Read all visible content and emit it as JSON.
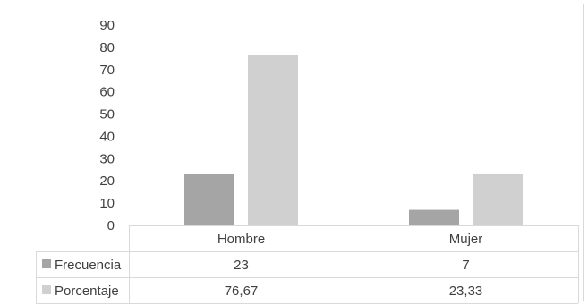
{
  "chart_data": {
    "type": "bar",
    "title": "",
    "xlabel": "",
    "ylabel": "",
    "categories": [
      "Hombre",
      "Mujer"
    ],
    "series": [
      {
        "name": "Frecuencia",
        "values": [
          23,
          7
        ],
        "labels": [
          "23",
          "7"
        ],
        "color": "#a5a5a5"
      },
      {
        "name": "Porcentaje",
        "values": [
          76.67,
          23.33
        ],
        "labels": [
          "76,67",
          "23,33"
        ],
        "color": "#d0d0d0"
      }
    ],
    "ylim": [
      0,
      90
    ],
    "yticks": [
      0,
      10,
      20,
      30,
      40,
      50,
      60,
      70,
      80,
      90
    ],
    "grid": false,
    "legend": "data-table-left"
  }
}
